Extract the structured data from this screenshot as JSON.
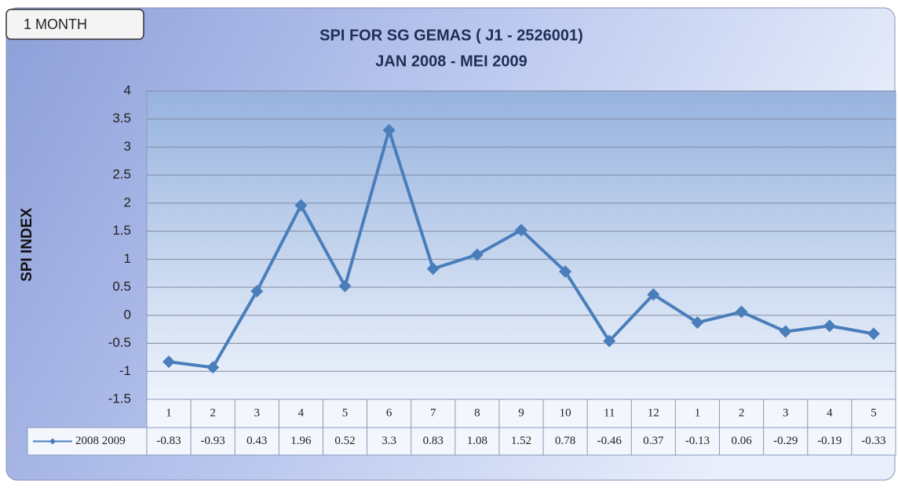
{
  "chart_data": {
    "type": "line",
    "button": "1 MONTH",
    "title": "SPI FOR SG GEMAS ( J1 - 2526001)",
    "subtitle": "JAN 2008 - MEI 2009",
    "y_label": "SPI INDEX",
    "categories": [
      "1",
      "2",
      "3",
      "4",
      "5",
      "6",
      "7",
      "8",
      "9",
      "10",
      "11",
      "12",
      "1",
      "2",
      "3",
      "4",
      "5"
    ],
    "series": [
      {
        "name": "2008 2009",
        "color": "#4a7ebb",
        "values": [
          -0.83,
          -0.93,
          0.43,
          1.96,
          0.52,
          3.3,
          0.83,
          1.08,
          1.52,
          0.78,
          -0.46,
          0.37,
          -0.13,
          0.06,
          -0.29,
          -0.19,
          -0.33
        ]
      }
    ],
    "ylim": [
      -1.5,
      4
    ],
    "yticks": [
      -1.5,
      -1,
      -0.5,
      0,
      0.5,
      1,
      1.5,
      2,
      2.5,
      3,
      3.5,
      4
    ],
    "grid": true,
    "data_table": true
  }
}
